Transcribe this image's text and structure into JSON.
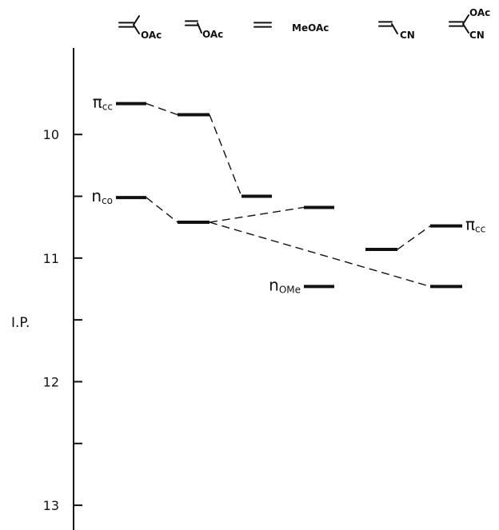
{
  "chart_data": {
    "type": "energy-level-diagram",
    "ylabel": "I.P.",
    "y_range": [
      13.2,
      9.3
    ],
    "y_ticks": [
      {
        "value": 10,
        "label": "10"
      },
      {
        "value": 10.5,
        "label": ""
      },
      {
        "value": 11,
        "label": "11"
      },
      {
        "value": 11.5,
        "label": ""
      },
      {
        "value": 12,
        "label": "12"
      },
      {
        "value": 12.5,
        "label": ""
      },
      {
        "value": 13,
        "label": "13"
      }
    ],
    "columns": [
      {
        "label": "OAc"
      },
      {
        "label": "OAc"
      },
      {
        "label": ""
      },
      {
        "label": "MeOAc"
      },
      {
        "label": "CN"
      },
      {
        "label": "OAc",
        "label2": "CN"
      }
    ],
    "levels": [
      {
        "id": "pi-c1",
        "column": 0,
        "ip": 9.75
      },
      {
        "id": "n-c1",
        "column": 0,
        "ip": 10.51
      },
      {
        "id": "pi-c2",
        "column": 1,
        "ip": 9.84
      },
      {
        "id": "n-c2",
        "column": 1,
        "ip": 10.71
      },
      {
        "id": "pi-c3",
        "column": 2,
        "ip": 10.5
      },
      {
        "id": "nco-c3",
        "column": 3,
        "ip": 10.59
      },
      {
        "id": "nome-c3",
        "column": 3,
        "ip": 11.23
      },
      {
        "id": "pi-c4",
        "column": 4,
        "ip": 10.93
      },
      {
        "id": "pi-c5",
        "column": 5,
        "ip": 10.74
      },
      {
        "id": "n-c5",
        "column": 5,
        "ip": 11.23
      }
    ],
    "level_labels": [
      {
        "level": "pi-c1",
        "side": "left",
        "main": "π",
        "sub": "cc"
      },
      {
        "level": "n-c1",
        "side": "left",
        "main": "n",
        "sub": "co"
      },
      {
        "level": "nome-c3",
        "side": "left",
        "main": "n",
        "sub": "OMe"
      },
      {
        "level": "pi-c5",
        "side": "right",
        "main": "π",
        "sub": "cc"
      }
    ],
    "correlations": [
      {
        "from": "pi-c1",
        "to": "pi-c2"
      },
      {
        "from": "pi-c2",
        "to": "pi-c3"
      },
      {
        "from": "n-c1",
        "to": "n-c2"
      },
      {
        "from": "n-c2",
        "to": "nco-c3"
      },
      {
        "from": "n-c2",
        "to": "n-c5"
      },
      {
        "from": "pi-c4",
        "to": "pi-c5"
      }
    ]
  }
}
